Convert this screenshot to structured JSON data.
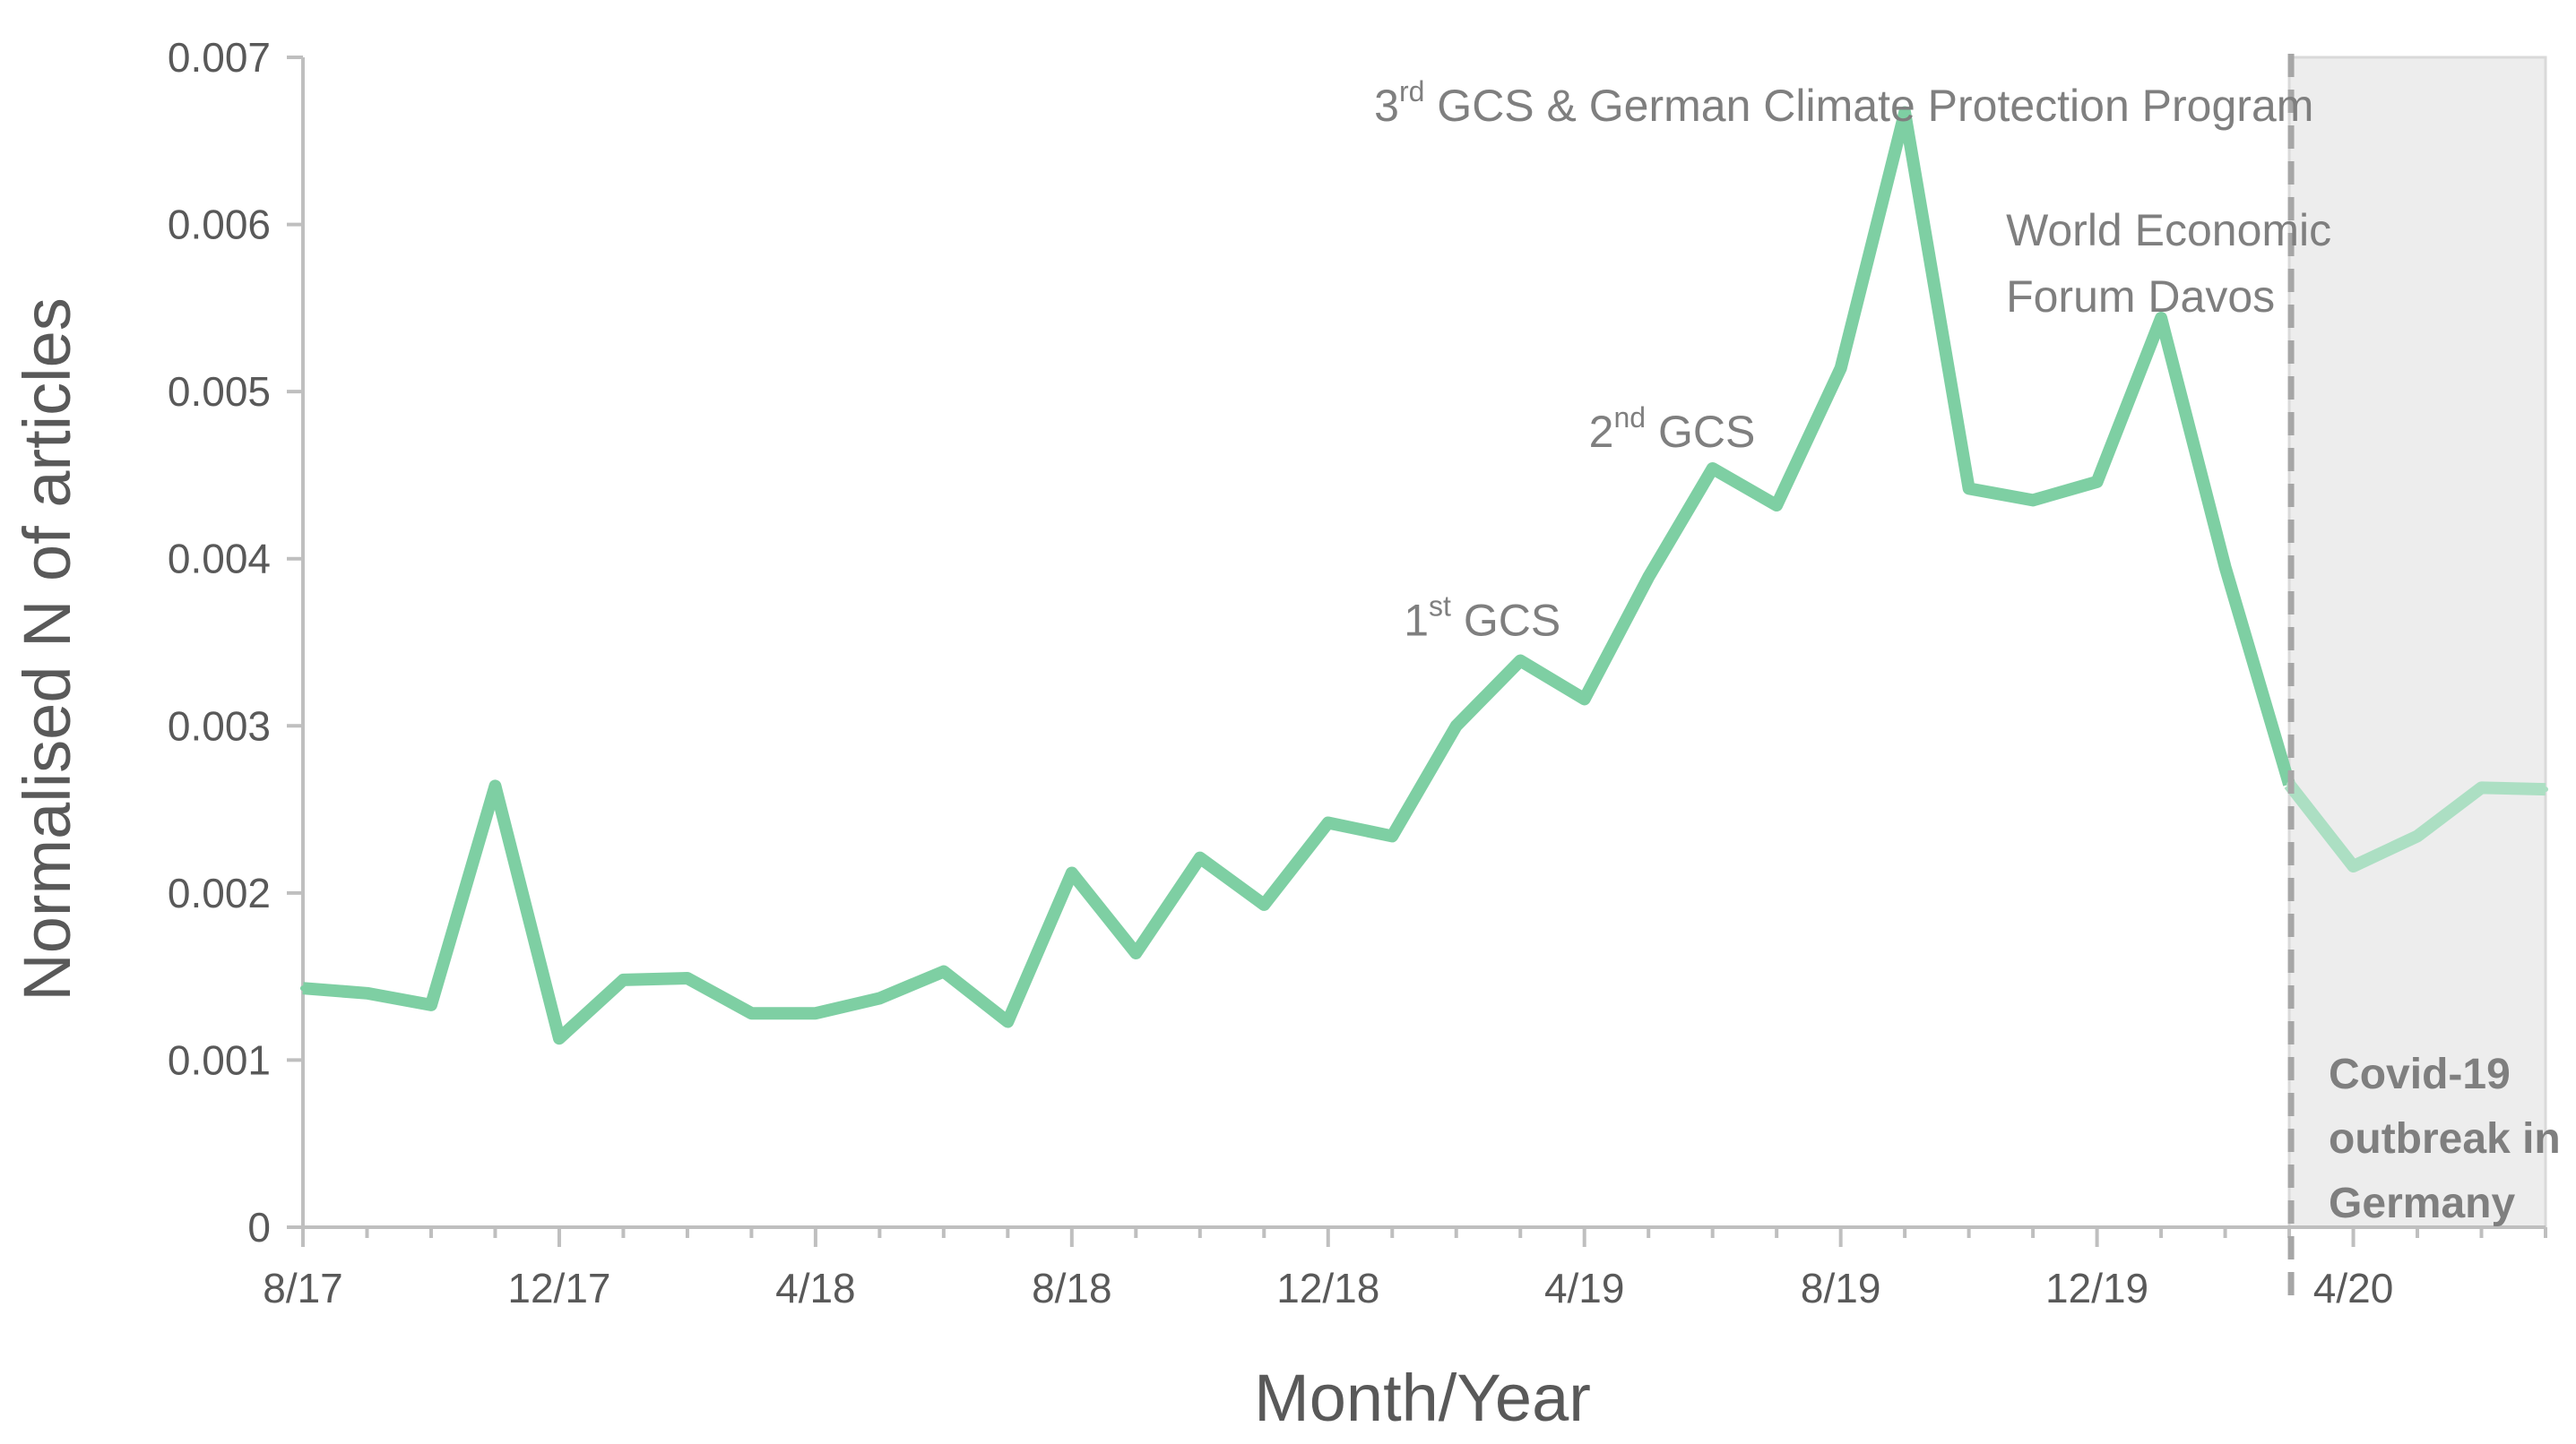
{
  "chart_data": {
    "type": "line",
    "title": "",
    "xlabel": "Month/Year",
    "ylabel": "Normalised N of articles",
    "ylim": [
      0,
      0.007
    ],
    "y_ticks": [
      "0",
      "0.001",
      "0.002",
      "0.003",
      "0.004",
      "0.005",
      "0.006",
      "0.007"
    ],
    "x_tick_labels": [
      "8/17",
      "12/17",
      "4/18",
      "8/18",
      "12/18",
      "4/19",
      "8/19",
      "12/19",
      "4/20"
    ],
    "x": [
      "8/17",
      "9/17",
      "10/17",
      "11/17",
      "12/17",
      "1/18",
      "2/18",
      "3/18",
      "4/18",
      "5/18",
      "6/18",
      "7/18",
      "8/18",
      "9/18",
      "10/18",
      "11/18",
      "12/18",
      "1/19",
      "2/19",
      "3/19",
      "4/19",
      "5/19",
      "6/19",
      "7/19",
      "8/19",
      "9/19",
      "10/19",
      "11/19",
      "12/19",
      "1/20",
      "2/20",
      "3/20",
      "4/20",
      "5/20",
      "6/20",
      "7/20"
    ],
    "series": [
      {
        "values": [
          0.00143,
          0.0014,
          0.00133,
          0.00264,
          0.00113,
          0.00148,
          0.00149,
          0.00128,
          0.00128,
          0.00137,
          0.00153,
          0.00123,
          0.00212,
          0.00164,
          0.00221,
          0.00193,
          0.00242,
          0.00234,
          0.003,
          0.00339,
          0.00316,
          0.00389,
          0.00454,
          0.00432,
          0.00514,
          0.00667,
          0.00442,
          0.00435,
          0.00446,
          0.00544,
          0.00395,
          0.00265,
          0.00216,
          0.00234,
          0.00263,
          0.00262
        ],
        "color": "#7ecfa3",
        "faded_color": "#acdfc3"
      }
    ],
    "grid": false,
    "legend": "none",
    "shaded_region": {
      "from": "3/20",
      "to": "7/20",
      "color": "#ededed",
      "label_lines": [
        "Covid-19",
        "outbreak in",
        "Germany"
      ]
    },
    "annotations": [
      {
        "base": "1",
        "sup": "st",
        "rest": " GCS",
        "x": "3/19"
      },
      {
        "base": "2",
        "sup": "nd",
        "rest": " GCS",
        "x": "6/19"
      },
      {
        "base": "3",
        "sup": "rd",
        "rest": " GCS & German Climate Protection Program",
        "x": "9/19"
      },
      {
        "lines": [
          "World Economic",
          "Forum Davos"
        ],
        "x": "1/20"
      }
    ]
  }
}
